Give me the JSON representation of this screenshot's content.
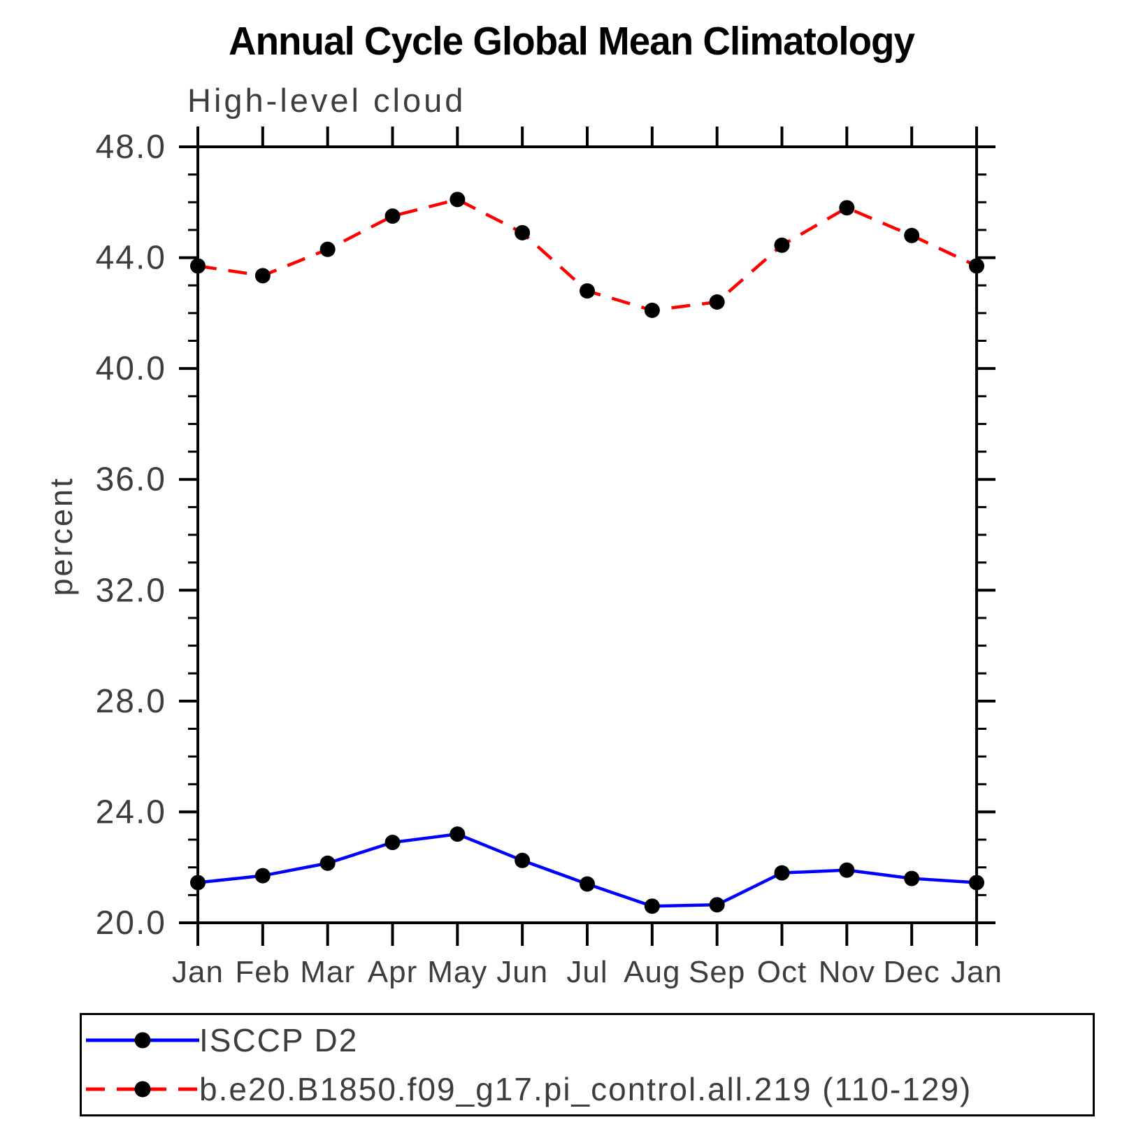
{
  "chart_data": {
    "type": "line",
    "title": "Annual Cycle Global Mean Climatology",
    "subtitle": "High-level cloud",
    "xlabel": "",
    "ylabel": "percent",
    "categories": [
      "Jan",
      "Feb",
      "Mar",
      "Apr",
      "May",
      "Jun",
      "Jul",
      "Aug",
      "Sep",
      "Oct",
      "Nov",
      "Dec",
      "Jan"
    ],
    "series": [
      {
        "name": "ISCCP D2",
        "color": "#0000ff",
        "line_style": "solid",
        "marker": "filled-circle",
        "marker_color": "#000000",
        "values": [
          21.45,
          21.7,
          22.15,
          22.9,
          23.2,
          22.25,
          21.4,
          20.6,
          20.65,
          21.8,
          21.9,
          21.6,
          21.45
        ]
      },
      {
        "name": "b.e20.B1850.f09_g17.pi_control.all.219 (110-129)",
        "color": "#ff0000",
        "line_style": "dashed",
        "marker": "filled-circle",
        "marker_color": "#000000",
        "values": [
          43.7,
          43.35,
          44.3,
          45.5,
          46.1,
          44.9,
          42.8,
          42.1,
          42.4,
          44.45,
          45.8,
          44.8,
          43.7
        ]
      }
    ],
    "ylim": [
      20.0,
      48.0
    ],
    "ytick_major": [
      20,
      24,
      28,
      32,
      36,
      40,
      44,
      48
    ],
    "ytick_labels": [
      "20.0",
      "24.0",
      "28.0",
      "32.0",
      "36.0",
      "40.0",
      "44.0",
      "48.0"
    ],
    "ytick_minor_step": 1,
    "grid": "off",
    "frame": "box",
    "tick_direction": "out",
    "legend_position": "bottom"
  },
  "colors": {
    "frame": "#000000",
    "text": "#3d3d3d",
    "title_text": "#000000",
    "series1": "#0000ff",
    "series2": "#ff0000",
    "marker": "#000000"
  }
}
